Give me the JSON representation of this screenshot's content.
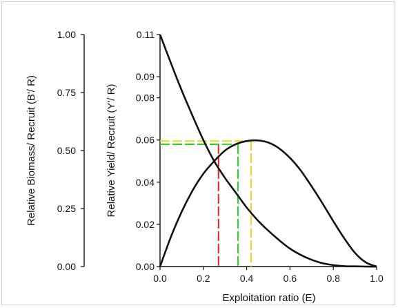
{
  "chart_data": {
    "type": "line",
    "xlabel": "Exploitation ratio (E)",
    "x_ticks": [
      "0.0",
      "0.2",
      "0.4",
      "0.6",
      "0.8",
      "1.0"
    ],
    "xlim": [
      0,
      1
    ],
    "left_axis": {
      "label": "Relative Biomass/ Recruit (B'/ R)",
      "ticks": [
        "0.00",
        "0.25",
        "0.50",
        "0.75",
        "1.00"
      ],
      "highlight_tick": "0.50",
      "highlight_color": "#e8201b",
      "ylim": [
        0,
        1
      ]
    },
    "right_axis": {
      "label": "Relative Yield/ Recruit (Y'/ R)",
      "ticks": [
        "0.00",
        "0.02",
        "0.04",
        "0.06",
        "0.08",
        "0.09",
        "0.11"
      ],
      "ylim": [
        0,
        0.11
      ]
    },
    "series": [
      {
        "x": [
          0.0,
          0.05,
          0.1,
          0.15,
          0.2,
          0.25,
          0.3,
          0.35,
          0.4,
          0.45,
          0.5,
          0.55,
          0.6,
          0.65,
          0.7,
          0.75,
          0.8,
          0.85,
          0.9,
          0.95,
          1.0
        ],
        "y": [
          0.11,
          0.0965,
          0.0835,
          0.0715,
          0.06,
          0.05,
          0.042,
          0.035,
          0.028,
          0.022,
          0.017,
          0.0125,
          0.0085,
          0.0055,
          0.0032,
          0.0016,
          0.0007,
          0.0002,
          0.0001,
          0.0,
          0.0
        ],
        "axis": "right",
        "color": "#111111"
      },
      {
        "x": [
          0.0,
          0.05,
          0.1,
          0.15,
          0.2,
          0.25,
          0.3,
          0.35,
          0.4,
          0.45,
          0.5,
          0.55,
          0.6,
          0.65,
          0.7,
          0.75,
          0.8,
          0.85,
          0.9,
          0.95,
          1.0
        ],
        "y": [
          0.0,
          0.014,
          0.026,
          0.036,
          0.044,
          0.05,
          0.055,
          0.058,
          0.0595,
          0.0598,
          0.0588,
          0.056,
          0.0515,
          0.0455,
          0.038,
          0.03,
          0.0215,
          0.0135,
          0.0065,
          0.002,
          0.0
        ],
        "axis": "right",
        "color": "#111111"
      }
    ],
    "reference_lines": [
      {
        "x": 0.27,
        "y": 0.058,
        "color": "#e8201b"
      },
      {
        "x": 0.36,
        "y": 0.058,
        "color": "#2bd12b"
      },
      {
        "x": 0.42,
        "y": 0.0595,
        "color": "#e6d81e"
      }
    ]
  }
}
